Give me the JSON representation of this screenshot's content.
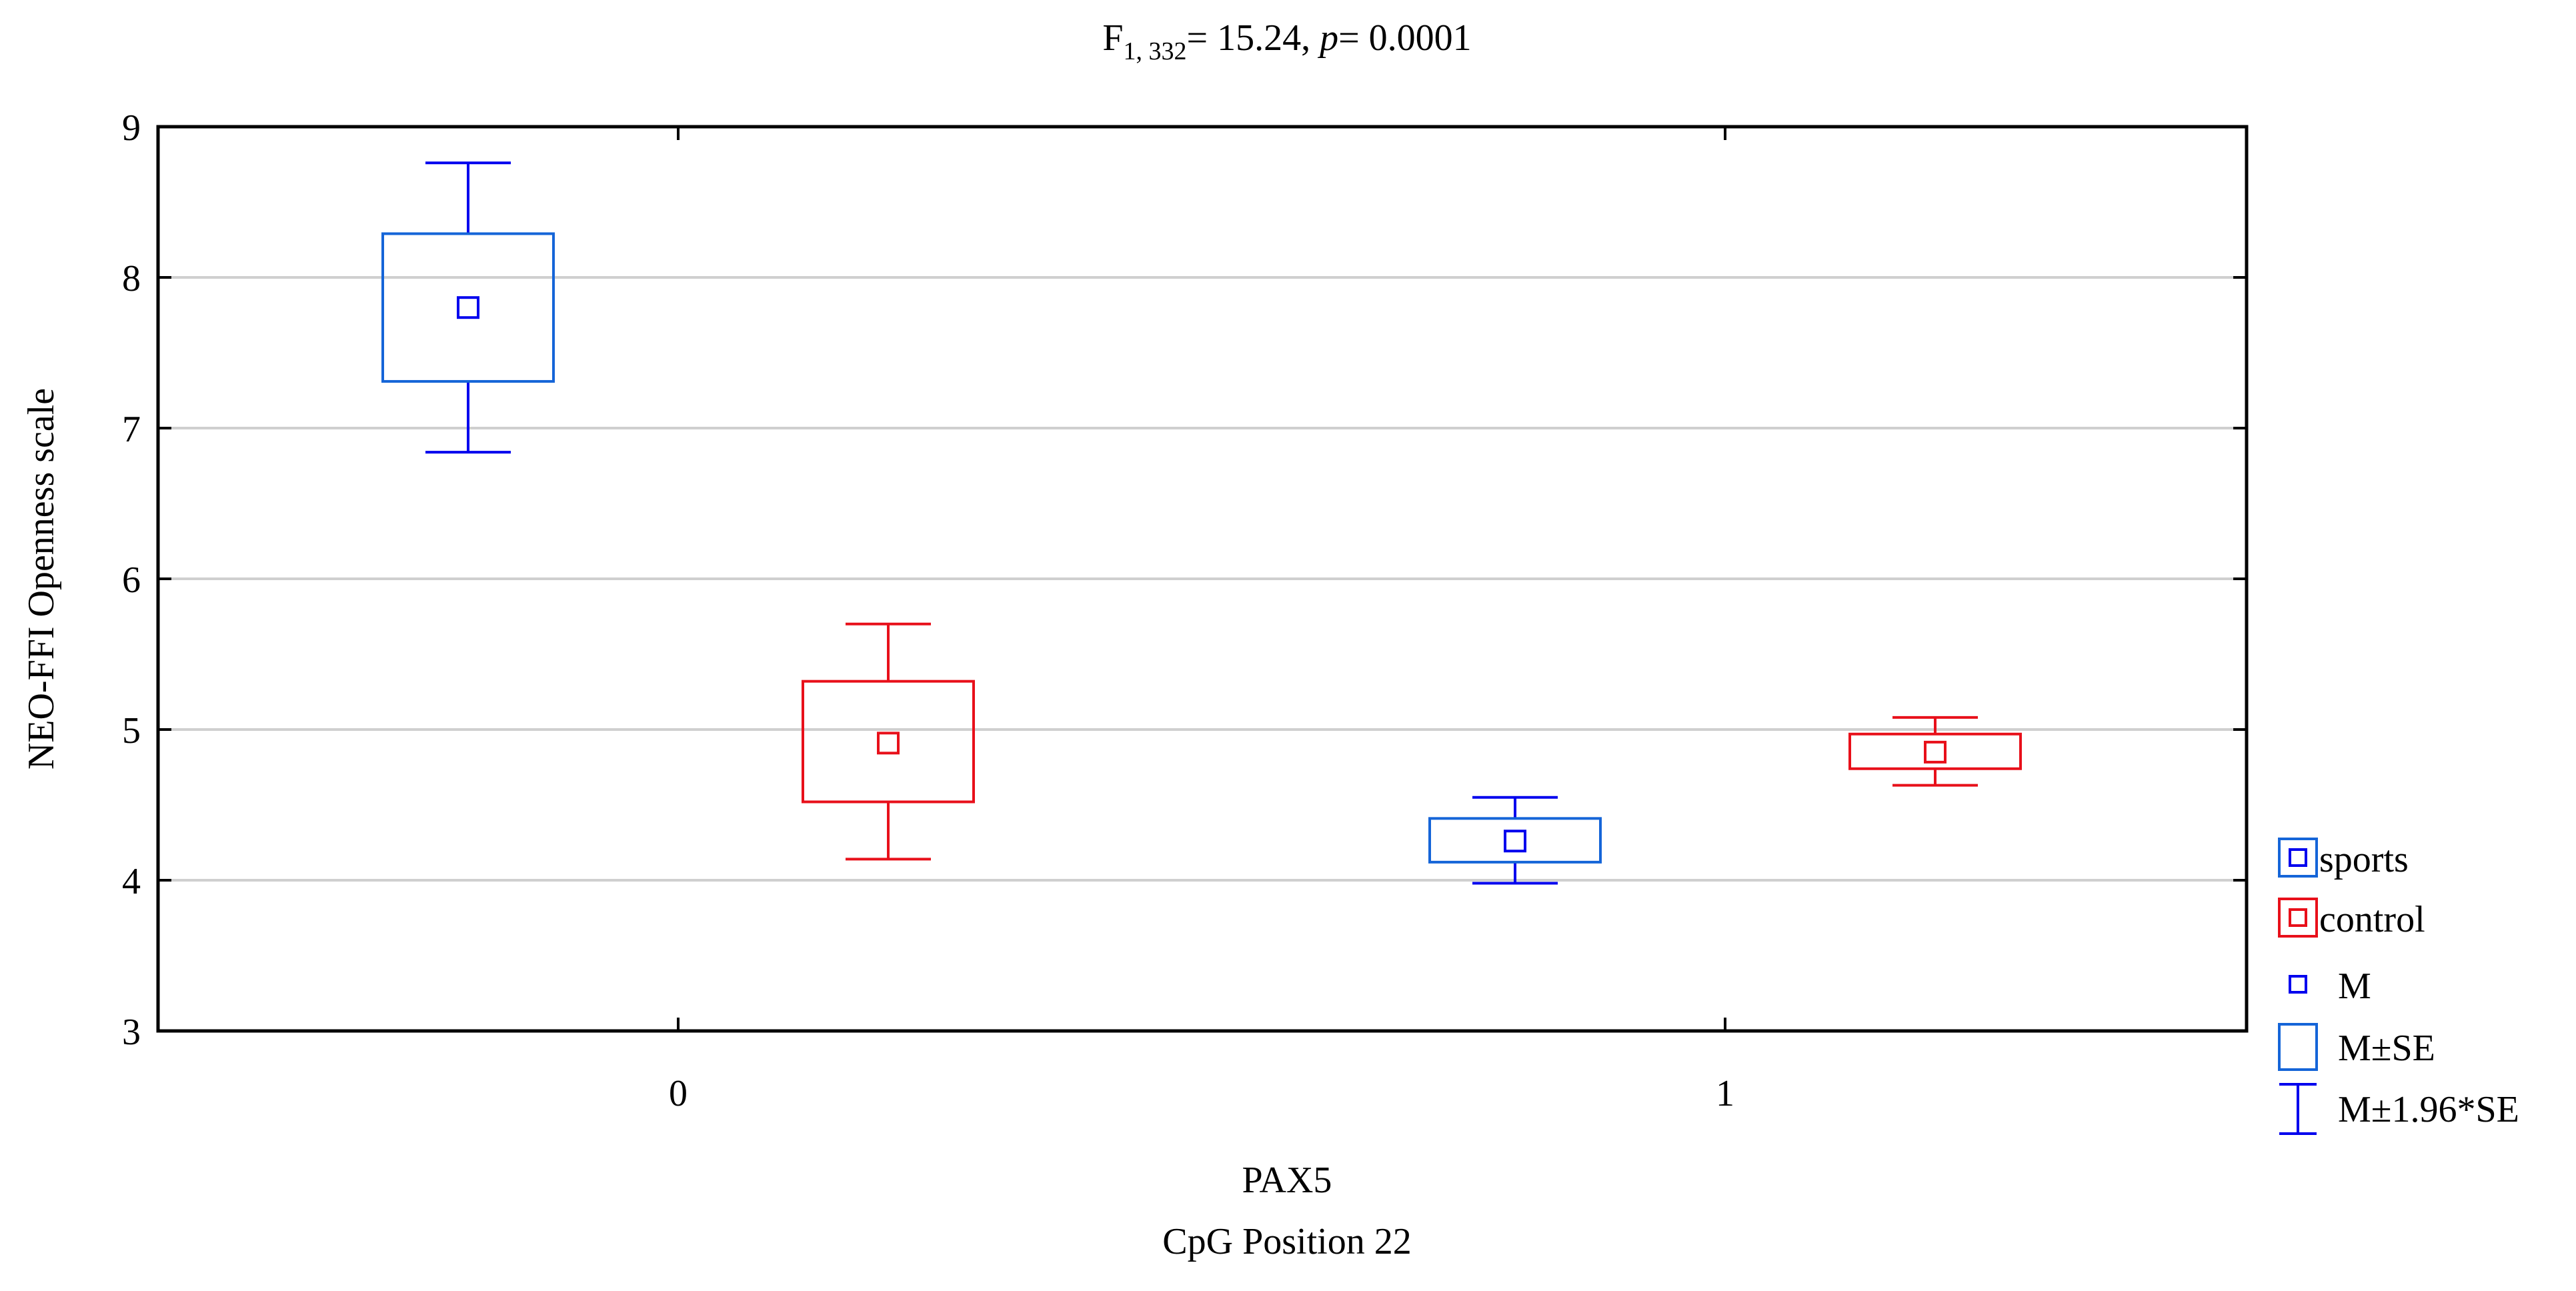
{
  "chart_data": {
    "type": "box",
    "title": {
      "prefix": "F",
      "subscript": "1, 332",
      "stat": "= 15.24, ",
      "p_symbol": "p",
      "p_value": "= 0.0001"
    },
    "xlabel_line1": "PAX5",
    "xlabel_line2": "CpG Position 22",
    "ylabel": "NEO-FFI Openness scale",
    "ylim": [
      3,
      9
    ],
    "yticks": [
      "3",
      "4",
      "5",
      "6",
      "7",
      "8",
      "9"
    ],
    "categories": [
      "0",
      "1"
    ],
    "grid": true,
    "legend_position": "right",
    "series": [
      {
        "name": "sports",
        "color": "#1565d8",
        "mean_color": "#0000ee",
        "points": [
          {
            "category": "0",
            "mean": 7.8,
            "se_low": 7.31,
            "se_high": 8.29,
            "ci_low": 6.84,
            "ci_high": 8.76
          },
          {
            "category": "1",
            "mean": 4.26,
            "se_low": 4.12,
            "se_high": 4.41,
            "ci_low": 3.98,
            "ci_high": 4.55
          }
        ]
      },
      {
        "name": "control",
        "color": "#e8101a",
        "mean_color": "#e8101a",
        "points": [
          {
            "category": "0",
            "mean": 4.91,
            "se_low": 4.52,
            "se_high": 5.32,
            "ci_low": 4.14,
            "ci_high": 5.7
          },
          {
            "category": "1",
            "mean": 4.85,
            "se_low": 4.74,
            "se_high": 4.97,
            "ci_low": 4.63,
            "ci_high": 5.08
          }
        ]
      }
    ],
    "legend": {
      "sports": "sports",
      "control": "control",
      "mean": "M",
      "se": "M±SE",
      "ci": "M±1.96*SE"
    }
  }
}
